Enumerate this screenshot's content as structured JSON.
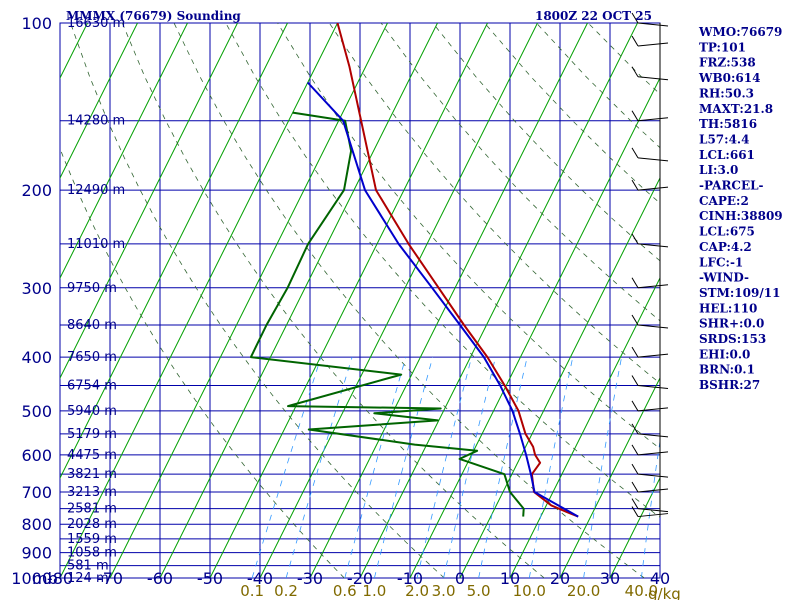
{
  "chart_data": {
    "type": "skew-t log-p sounding",
    "title": "MMMX (76679) Sounding",
    "valid_time": "1800Z 22 OCT 25",
    "pressure_unit_label": "mb",
    "mixing_ratio_unit_label": "g/kg",
    "pressure_levels": [
      100,
      200,
      300,
      400,
      500,
      600,
      700,
      800,
      900,
      1000
    ],
    "temperature_ticks": [
      -80,
      -70,
      -60,
      -50,
      -40,
      -30,
      -20,
      -10,
      0,
      10,
      20,
      30,
      40
    ],
    "temperature_tick_labels": [
      "-80",
      "-70",
      "-60",
      "-50",
      "-40",
      "-30",
      "-20",
      "-10",
      "0",
      "10",
      "20",
      "30",
      "40"
    ],
    "height_labels": [
      {
        "p": 100,
        "label": "16630 m"
      },
      {
        "p": 150,
        "label": "14280 m"
      },
      {
        "p": 200,
        "label": "12490 m"
      },
      {
        "p": 250,
        "label": "11010 m"
      },
      {
        "p": 300,
        "label": "9750 m"
      },
      {
        "p": 350,
        "label": "8640 m"
      },
      {
        "p": 400,
        "label": "7650 m"
      },
      {
        "p": 450,
        "label": "6754 m"
      },
      {
        "p": 500,
        "label": "5940 m"
      },
      {
        "p": 550,
        "label": "5179 m"
      },
      {
        "p": 600,
        "label": "4475 m"
      },
      {
        "p": 650,
        "label": "3821 m"
      },
      {
        "p": 700,
        "label": "3213 m"
      },
      {
        "p": 750,
        "label": "2581 m"
      },
      {
        "p": 800,
        "label": "2028 m"
      },
      {
        "p": 850,
        "label": "1559 m"
      },
      {
        "p": 900,
        "label": "1058 m"
      },
      {
        "p": 950,
        "label": "581 m"
      },
      {
        "p": 1000,
        "label": "124 m"
      }
    ],
    "mixing_ratio_labels": [
      "0.1",
      "0.2",
      "0.6",
      "1.0",
      "2.0",
      "3.0",
      "5.0",
      "10.0",
      "20.0",
      "40.0"
    ],
    "mixing_ratio_values": [
      0.1,
      0.2,
      0.6,
      1.0,
      2.0,
      3.0,
      5.0,
      10.0,
      20.0,
      40.0
    ],
    "series": [
      {
        "name": "Temperature",
        "color": "#b00000",
        "points": [
          {
            "p": 775,
            "t": 17.5
          },
          {
            "p": 760,
            "t": 14.7
          },
          {
            "p": 740,
            "t": 11.0
          },
          {
            "p": 700,
            "t": 6.2
          },
          {
            "p": 650,
            "t": 4.0
          },
          {
            "p": 620,
            "t": 4.5
          },
          {
            "p": 600,
            "t": 2.7
          },
          {
            "p": 580,
            "t": 1.5
          },
          {
            "p": 550,
            "t": -1.3
          },
          {
            "p": 500,
            "t": -5.0
          },
          {
            "p": 450,
            "t": -10.3
          },
          {
            "p": 400,
            "t": -16.6
          },
          {
            "p": 350,
            "t": -24.5
          },
          {
            "p": 300,
            "t": -33.3
          },
          {
            "p": 250,
            "t": -43.7
          },
          {
            "p": 200,
            "t": -55.6
          },
          {
            "p": 150,
            "t": -65.5
          },
          {
            "p": 120,
            "t": -73.2
          },
          {
            "p": 100,
            "t": -80.0
          }
        ]
      },
      {
        "name": "Dewpoint",
        "color": "#006400",
        "points": [
          {
            "p": 775,
            "t": 6.5
          },
          {
            "p": 750,
            "t": 5.8
          },
          {
            "p": 700,
            "t": 1.4
          },
          {
            "p": 650,
            "t": -1.5
          },
          {
            "p": 610,
            "t": -12.0
          },
          {
            "p": 590,
            "t": -9.3
          },
          {
            "p": 575,
            "t": -22.4
          },
          {
            "p": 540,
            "t": -45.1
          },
          {
            "p": 520,
            "t": -20.2
          },
          {
            "p": 505,
            "t": -33.6
          },
          {
            "p": 495,
            "t": -20.8
          },
          {
            "p": 490,
            "t": -51.6
          },
          {
            "p": 430,
            "t": -32.1
          },
          {
            "p": 400,
            "t": -63.9
          },
          {
            "p": 350,
            "t": -64.0
          },
          {
            "p": 300,
            "t": -63.5
          },
          {
            "p": 250,
            "t": -63.8
          },
          {
            "p": 200,
            "t": -62.0
          },
          {
            "p": 170,
            "t": -64.5
          },
          {
            "p": 150,
            "t": -68.7
          },
          {
            "p": 145,
            "t": -80.0
          }
        ]
      },
      {
        "name": "Parcel",
        "color": "#0000cc",
        "points": [
          {
            "p": 775,
            "t": 17.5
          },
          {
            "p": 700,
            "t": 6.3
          },
          {
            "p": 650,
            "t": 3.8
          },
          {
            "p": 600,
            "t": 0.9
          },
          {
            "p": 550,
            "t": -2.4
          },
          {
            "p": 500,
            "t": -6.2
          },
          {
            "p": 450,
            "t": -11.2
          },
          {
            "p": 400,
            "t": -17.3
          },
          {
            "p": 350,
            "t": -25.3
          },
          {
            "p": 300,
            "t": -34.6
          },
          {
            "p": 250,
            "t": -45.7
          },
          {
            "p": 200,
            "t": -57.8
          },
          {
            "p": 150,
            "t": -69.1
          },
          {
            "p": 128,
            "t": -80.0
          }
        ]
      }
    ],
    "wind_profile_pressures": [
      775,
      750,
      700,
      650,
      600,
      550,
      500,
      450,
      400,
      350,
      300,
      250,
      200,
      175,
      150,
      125,
      110,
      100
    ],
    "indices": [
      "WMO:76679",
      "TP:101",
      "FRZ:538",
      "WB0:614",
      "RH:50.3",
      "MAXT:21.8",
      "TH:5816",
      "L57:4.4",
      "LCL:661",
      "LI:3.0",
      "-PARCEL-",
      "CAPE:2",
      "CINH:38809",
      "LCL:675",
      "CAP:4.2",
      "LFC:-1",
      "-WIND-",
      "STM:109/11",
      "HEL:110",
      "SHR+:0.0",
      "SRDS:153",
      "EHI:0.0",
      "BRN:0.1",
      "BSHR:27"
    ],
    "colors": {
      "grid": "#0000aa",
      "dry_adiabat": "#00a000",
      "moist_adiabat": "#336633",
      "mixing_ratio": "#3399ff",
      "text": "#00008b",
      "mixing_ratio_text": "#806a00"
    }
  }
}
